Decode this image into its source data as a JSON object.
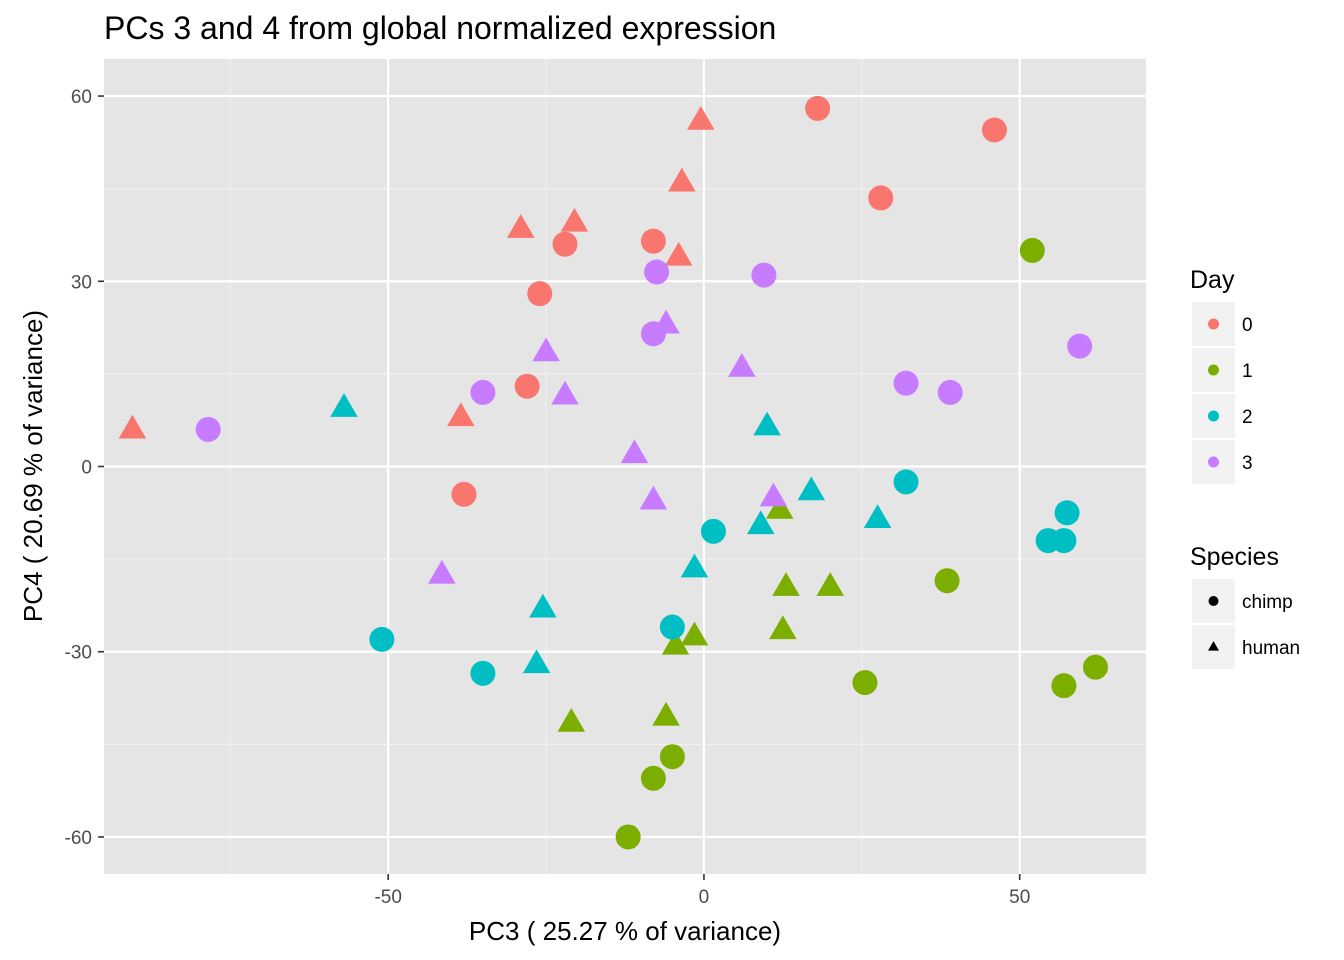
{
  "chart_data": {
    "type": "scatter",
    "title": "PCs 3 and 4 from global normalized expression",
    "xlabel": "PC3 ( 25.27 % of variance)",
    "ylabel": "PC4 ( 20.69 % of variance)",
    "xlim": [
      -95,
      70
    ],
    "ylim": [
      -66,
      66
    ],
    "x_ticks": [
      -50,
      0,
      50
    ],
    "x_tick_labels": [
      "-50",
      "0",
      "50"
    ],
    "y_ticks": [
      -60,
      -30,
      0,
      30,
      60
    ],
    "y_tick_labels": [
      "-60",
      "-30",
      "0",
      "30",
      "60"
    ],
    "grid": true,
    "panel_background": "#e5e5e5",
    "legend_position": "right",
    "legends": {
      "color": {
        "title": "Day",
        "entries": [
          {
            "label": "0",
            "color": "#f8766d"
          },
          {
            "label": "1",
            "color": "#7cae00"
          },
          {
            "label": "2",
            "color": "#00bfc4"
          },
          {
            "label": "3",
            "color": "#c77cff"
          }
        ]
      },
      "shape": {
        "title": "Species",
        "entries": [
          {
            "label": "chimp",
            "shape": "circle"
          },
          {
            "label": "human",
            "shape": "triangle"
          }
        ]
      }
    },
    "points": [
      {
        "x": 18,
        "y": 58,
        "day": "0",
        "species": "chimp"
      },
      {
        "x": 46,
        "y": 54.5,
        "day": "0",
        "species": "chimp"
      },
      {
        "x": 28,
        "y": 43.5,
        "day": "0",
        "species": "chimp"
      },
      {
        "x": -8,
        "y": 36.5,
        "day": "0",
        "species": "chimp"
      },
      {
        "x": -22,
        "y": 36,
        "day": "0",
        "species": "chimp"
      },
      {
        "x": -26,
        "y": 28,
        "day": "0",
        "species": "chimp"
      },
      {
        "x": -28,
        "y": 13,
        "day": "0",
        "species": "chimp"
      },
      {
        "x": -38,
        "y": -4.5,
        "day": "0",
        "species": "chimp"
      },
      {
        "x": -0.5,
        "y": 56,
        "day": "0",
        "species": "human"
      },
      {
        "x": -3.5,
        "y": 46,
        "day": "0",
        "species": "human"
      },
      {
        "x": -29,
        "y": 38.5,
        "day": "0",
        "species": "human"
      },
      {
        "x": -20.5,
        "y": 39.5,
        "day": "0",
        "species": "human"
      },
      {
        "x": -4,
        "y": 34,
        "day": "0",
        "species": "human"
      },
      {
        "x": -38.5,
        "y": 8,
        "day": "0",
        "species": "human"
      },
      {
        "x": -90.5,
        "y": 6,
        "day": "0",
        "species": "human"
      },
      {
        "x": 52,
        "y": 35,
        "day": "1",
        "species": "chimp"
      },
      {
        "x": 38.5,
        "y": -18.5,
        "day": "1",
        "species": "chimp"
      },
      {
        "x": 25.5,
        "y": -35,
        "day": "1",
        "species": "chimp"
      },
      {
        "x": 57,
        "y": -35.5,
        "day": "1",
        "species": "chimp"
      },
      {
        "x": 62,
        "y": -32.5,
        "day": "1",
        "species": "chimp"
      },
      {
        "x": -5,
        "y": -47,
        "day": "1",
        "species": "chimp"
      },
      {
        "x": -8,
        "y": -50.5,
        "day": "1",
        "species": "chimp"
      },
      {
        "x": -12,
        "y": -60,
        "day": "1",
        "species": "chimp"
      },
      {
        "x": 12,
        "y": -7,
        "day": "1",
        "species": "human"
      },
      {
        "x": 13,
        "y": -19.5,
        "day": "1",
        "species": "human"
      },
      {
        "x": 20,
        "y": -19.5,
        "day": "1",
        "species": "human"
      },
      {
        "x": 12.5,
        "y": -26.5,
        "day": "1",
        "species": "human"
      },
      {
        "x": -1.5,
        "y": -27.5,
        "day": "1",
        "species": "human"
      },
      {
        "x": -4.5,
        "y": -29,
        "day": "1",
        "species": "human"
      },
      {
        "x": -6,
        "y": -40.5,
        "day": "1",
        "species": "human"
      },
      {
        "x": -21,
        "y": -41.5,
        "day": "1",
        "species": "human"
      },
      {
        "x": 32,
        "y": -2.5,
        "day": "2",
        "species": "chimp"
      },
      {
        "x": 57.5,
        "y": -7.5,
        "day": "2",
        "species": "chimp"
      },
      {
        "x": 54.5,
        "y": -12,
        "day": "2",
        "species": "chimp"
      },
      {
        "x": 57,
        "y": -12,
        "day": "2",
        "species": "chimp"
      },
      {
        "x": 1.5,
        "y": -10.5,
        "day": "2",
        "species": "chimp"
      },
      {
        "x": -5,
        "y": -26,
        "day": "2",
        "species": "chimp"
      },
      {
        "x": -51,
        "y": -28,
        "day": "2",
        "species": "chimp"
      },
      {
        "x": -35,
        "y": -33.5,
        "day": "2",
        "species": "chimp"
      },
      {
        "x": -57,
        "y": 9.5,
        "day": "2",
        "species": "human"
      },
      {
        "x": 10,
        "y": 6.5,
        "day": "2",
        "species": "human"
      },
      {
        "x": 17,
        "y": -4,
        "day": "2",
        "species": "human"
      },
      {
        "x": 9,
        "y": -9.5,
        "day": "2",
        "species": "human"
      },
      {
        "x": 27.5,
        "y": -8.5,
        "day": "2",
        "species": "human"
      },
      {
        "x": -1.5,
        "y": -16.5,
        "day": "2",
        "species": "human"
      },
      {
        "x": -25.5,
        "y": -23,
        "day": "2",
        "species": "human"
      },
      {
        "x": -26.5,
        "y": -32,
        "day": "2",
        "species": "human"
      },
      {
        "x": 9.5,
        "y": 31,
        "day": "3",
        "species": "chimp"
      },
      {
        "x": -7.5,
        "y": 31.5,
        "day": "3",
        "species": "chimp"
      },
      {
        "x": -8,
        "y": 21.5,
        "day": "3",
        "species": "chimp"
      },
      {
        "x": 59.5,
        "y": 19.5,
        "day": "3",
        "species": "chimp"
      },
      {
        "x": 32,
        "y": 13.5,
        "day": "3",
        "species": "chimp"
      },
      {
        "x": 39,
        "y": 12,
        "day": "3",
        "species": "chimp"
      },
      {
        "x": -35,
        "y": 12,
        "day": "3",
        "species": "chimp"
      },
      {
        "x": -78.5,
        "y": 6,
        "day": "3",
        "species": "chimp"
      },
      {
        "x": -6,
        "y": 23,
        "day": "3",
        "species": "human"
      },
      {
        "x": -25,
        "y": 18.5,
        "day": "3",
        "species": "human"
      },
      {
        "x": 6,
        "y": 16,
        "day": "3",
        "species": "human"
      },
      {
        "x": -22,
        "y": 11.5,
        "day": "3",
        "species": "human"
      },
      {
        "x": -11,
        "y": 2,
        "day": "3",
        "species": "human"
      },
      {
        "x": -8,
        "y": -5.5,
        "day": "3",
        "species": "human"
      },
      {
        "x": 11,
        "y": -5,
        "day": "3",
        "species": "human"
      },
      {
        "x": -41.5,
        "y": -17.5,
        "day": "3",
        "species": "human"
      }
    ]
  }
}
